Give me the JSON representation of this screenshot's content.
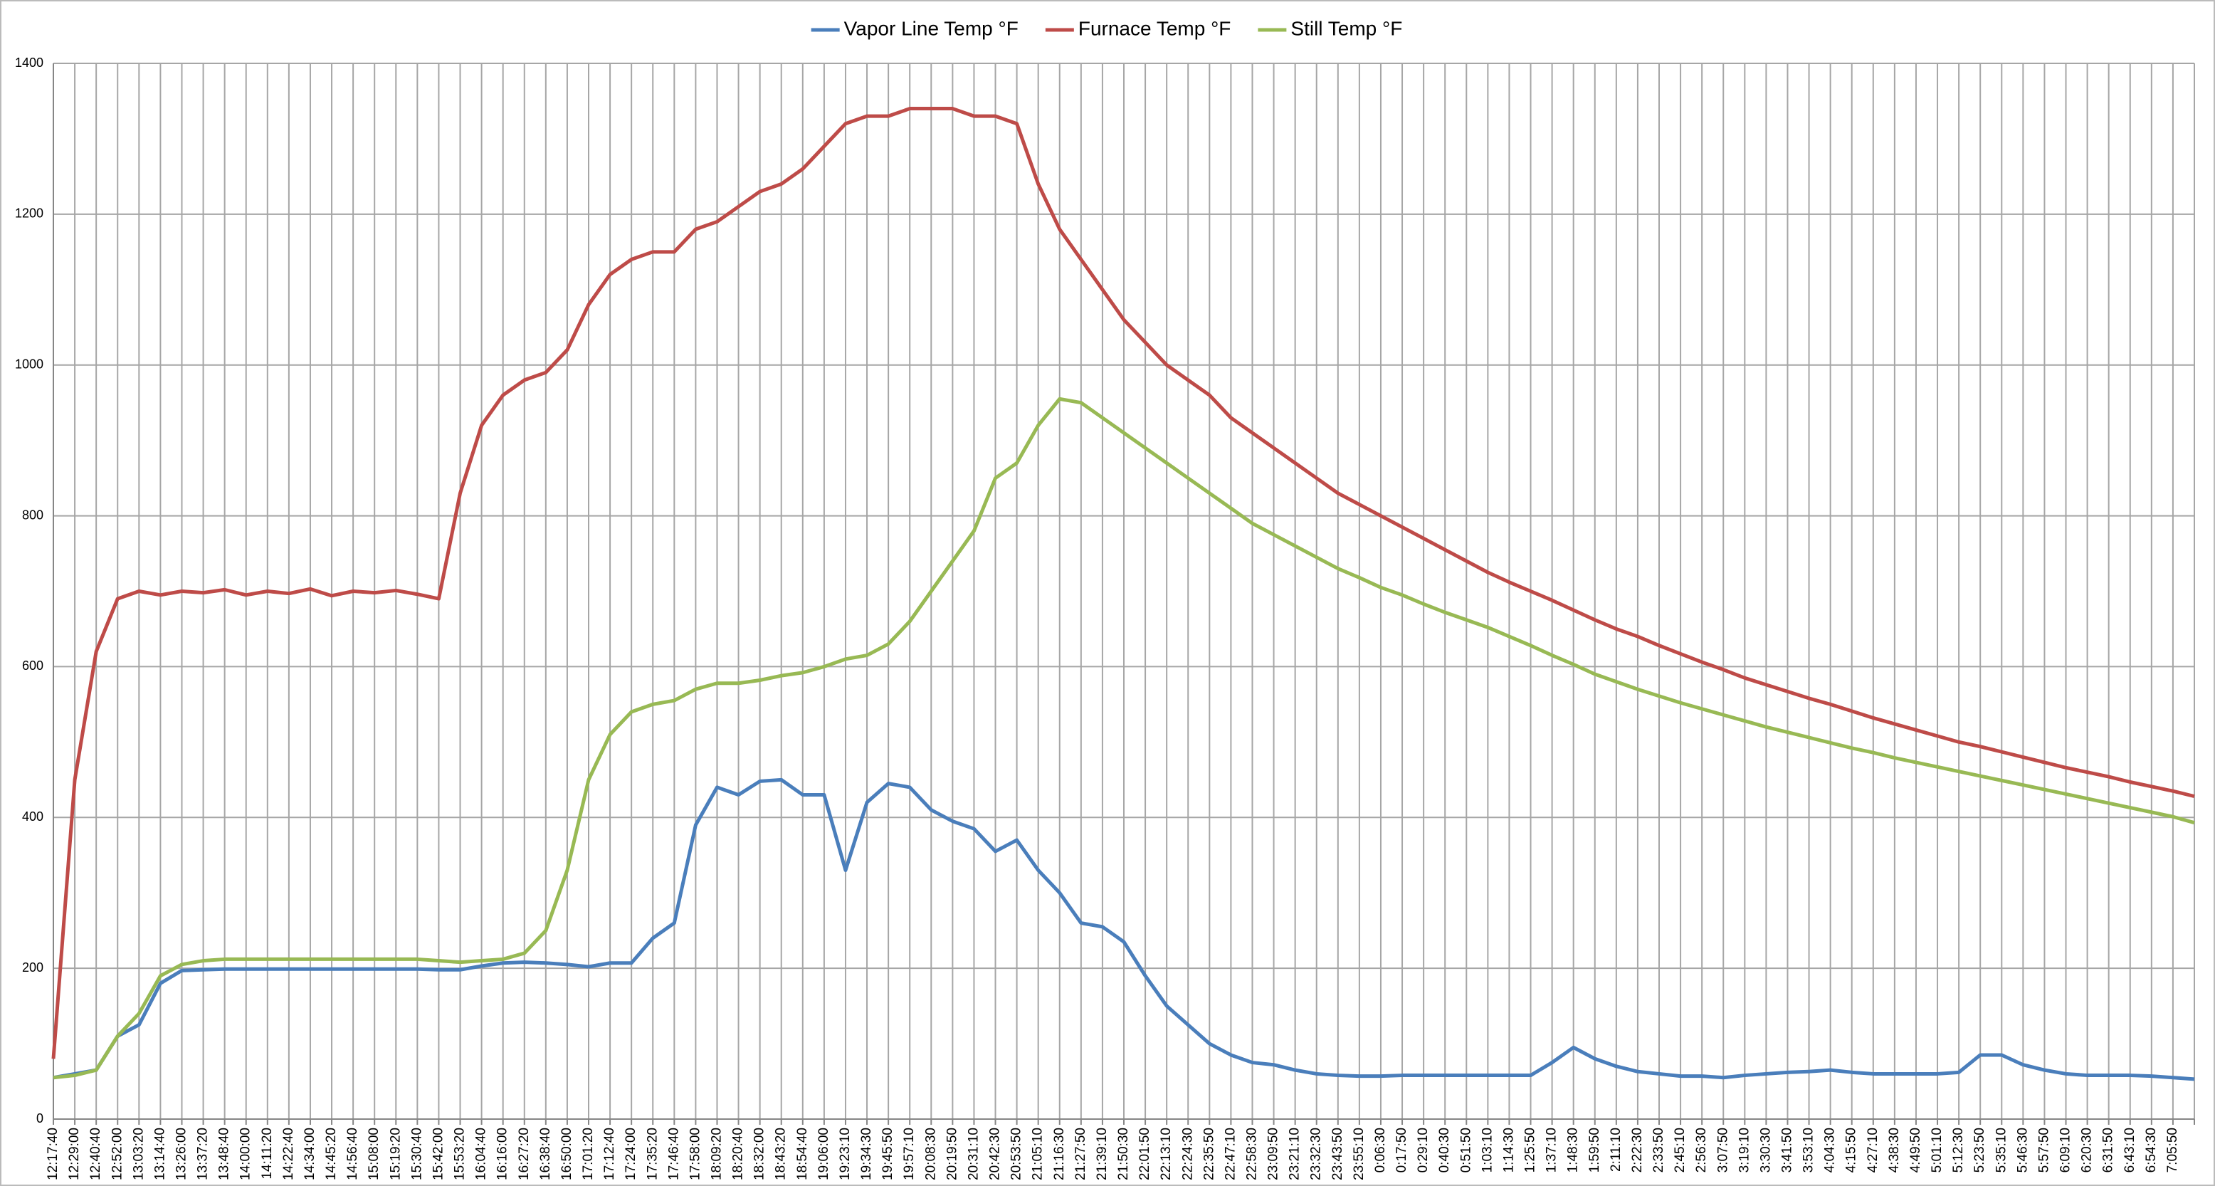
{
  "chart_data": {
    "type": "line",
    "categories": [
      "12:17:40",
      "12:29:00",
      "12:40:40",
      "12:52:00",
      "13:03:20",
      "13:14:40",
      "13:26:00",
      "13:37:20",
      "13:48:40",
      "14:00:00",
      "14:11:20",
      "14:22:40",
      "14:34:00",
      "14:45:20",
      "14:56:40",
      "15:08:00",
      "15:19:20",
      "15:30:40",
      "15:42:00",
      "15:53:20",
      "16:04:40",
      "16:16:00",
      "16:27:20",
      "16:38:40",
      "16:50:00",
      "17:01:20",
      "17:12:40",
      "17:24:00",
      "17:35:20",
      "17:46:40",
      "17:58:00",
      "18:09:20",
      "18:20:40",
      "18:32:00",
      "18:43:20",
      "18:54:40",
      "19:06:00",
      "19:23:10",
      "19:34:30",
      "19:45:50",
      "19:57:10",
      "20:08:30",
      "20:19:50",
      "20:31:10",
      "20:42:30",
      "20:53:50",
      "21:05:10",
      "21:16:30",
      "21:27:50",
      "21:39:10",
      "21:50:30",
      "22:01:50",
      "22:13:10",
      "22:24:30",
      "22:35:50",
      "22:47:10",
      "22:58:30",
      "23:09:50",
      "23:21:10",
      "23:32:30",
      "23:43:50",
      "23:55:10",
      "0:06:30",
      "0:17:50",
      "0:29:10",
      "0:40:30",
      "0:51:50",
      "1:03:10",
      "1:14:30",
      "1:25:50",
      "1:37:10",
      "1:48:30",
      "1:59:50",
      "2:11:10",
      "2:22:30",
      "2:33:50",
      "2:45:10",
      "2:56:30",
      "3:07:50",
      "3:19:10",
      "3:30:30",
      "3:41:50",
      "3:53:10",
      "4:04:30",
      "4:15:50",
      "4:27:10",
      "4:38:30",
      "4:49:50",
      "5:01:10",
      "5:12:30",
      "5:23:50",
      "5:35:10",
      "5:46:30",
      "5:57:50",
      "6:09:10",
      "6:20:30",
      "6:31:50",
      "6:43:10",
      "6:54:30",
      "7:05:50",
      null
    ],
    "series": [
      {
        "name": "Vapor Line Temp °F",
        "color": "#4a7ebb",
        "values": [
          55,
          60,
          65,
          110,
          125,
          180,
          197,
          198,
          199,
          199,
          199,
          199,
          199,
          199,
          199,
          199,
          199,
          199,
          198,
          198,
          203,
          207,
          208,
          207,
          205,
          202,
          207,
          207,
          240,
          260,
          390,
          440,
          430,
          448,
          450,
          430,
          430,
          330,
          420,
          445,
          440,
          410,
          395,
          385,
          355,
          370,
          330,
          300,
          260,
          255,
          235,
          190,
          150,
          125,
          100,
          85,
          75,
          72,
          65,
          60,
          58,
          57,
          57,
          58,
          58,
          58,
          58,
          58,
          58,
          58,
          75,
          95,
          80,
          70,
          63,
          60,
          57,
          57,
          55,
          58,
          60,
          62,
          63,
          65,
          62,
          60,
          60,
          60,
          60,
          62,
          85,
          85,
          72,
          65,
          60,
          58,
          58,
          58,
          57,
          55,
          53
        ]
      },
      {
        "name": "Furnace Temp °F",
        "color": "#be4b48",
        "values": [
          80,
          450,
          620,
          690,
          700,
          695,
          700,
          698,
          702,
          695,
          700,
          697,
          703,
          694,
          700,
          698,
          701,
          696,
          690,
          830,
          920,
          960,
          980,
          990,
          1020,
          1080,
          1120,
          1140,
          1150,
          1150,
          1180,
          1190,
          1210,
          1230,
          1240,
          1260,
          1290,
          1320,
          1330,
          1330,
          1340,
          1340,
          1340,
          1330,
          1330,
          1320,
          1240,
          1180,
          1140,
          1100,
          1060,
          1030,
          1000,
          980,
          960,
          930,
          910,
          890,
          870,
          850,
          830,
          815,
          800,
          785,
          770,
          755,
          740,
          725,
          712,
          700,
          688,
          675,
          662,
          650,
          640,
          628,
          617,
          606,
          596,
          585,
          576,
          567,
          558,
          550,
          541,
          532,
          524,
          516,
          508,
          500,
          494,
          487,
          480,
          473,
          466,
          460,
          454,
          447,
          441,
          435,
          428
        ]
      },
      {
        "name": "Still Temp °F",
        "color": "#98b954",
        "values": [
          55,
          58,
          65,
          110,
          140,
          190,
          205,
          210,
          212,
          212,
          212,
          212,
          212,
          212,
          212,
          212,
          212,
          212,
          210,
          208,
          210,
          212,
          220,
          250,
          330,
          450,
          510,
          540,
          550,
          555,
          570,
          578,
          578,
          582,
          588,
          592,
          600,
          610,
          615,
          630,
          660,
          700,
          740,
          780,
          850,
          870,
          920,
          955,
          950,
          930,
          910,
          890,
          870,
          850,
          830,
          810,
          790,
          775,
          760,
          745,
          730,
          718,
          705,
          695,
          683,
          672,
          662,
          652,
          640,
          628,
          615,
          603,
          590,
          580,
          570,
          561,
          552,
          544,
          536,
          528,
          520,
          513,
          506,
          499,
          492,
          486,
          479,
          473,
          467,
          461,
          455,
          449,
          443,
          437,
          431,
          425,
          419,
          413,
          407,
          401,
          393
        ]
      }
    ],
    "ylim": [
      0,
      1400
    ],
    "yticks": [
      0,
      200,
      400,
      600,
      800,
      1000,
      1200,
      1400
    ],
    "grid": true,
    "legend": "top"
  }
}
